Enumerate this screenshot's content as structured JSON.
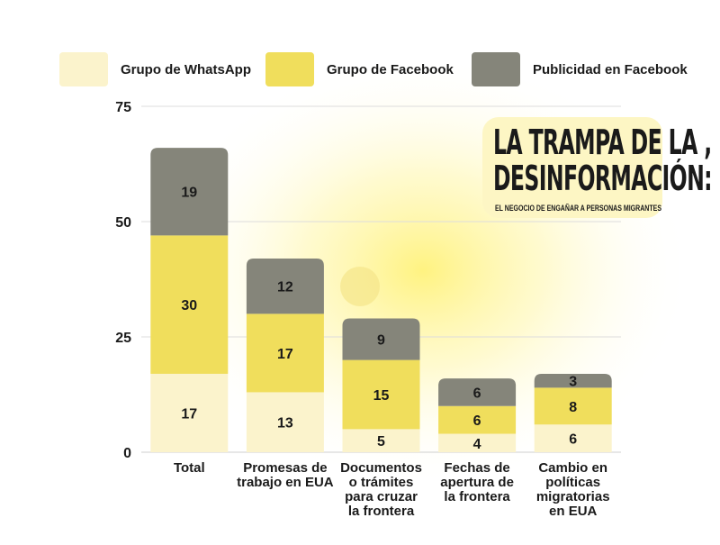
{
  "legend": [
    {
      "label": "Grupo de WhatsApp",
      "color": "#fbf3cc"
    },
    {
      "label": "Grupo de Facebook",
      "color": "#f0de5c"
    },
    {
      "label": "Publicidad en Facebook",
      "color": "#85857a"
    }
  ],
  "badge": {
    "line1": "LA TRAMPA DE LA ,",
    "line2": "DESINFORMACIÓN:",
    "subtitle": "EL NEGOCIO DE ENGAÑAR A PERSONAS MIGRANTES"
  },
  "chart_data": {
    "type": "bar",
    "stacked": true,
    "categories": [
      [
        "Total"
      ],
      [
        "Promesas de",
        "trabajo en EUA"
      ],
      [
        "Documentos",
        "o trámites",
        "para cruzar",
        "la frontera"
      ],
      [
        "Fechas de",
        "apertura de",
        "la frontera"
      ],
      [
        "Cambio en",
        "políticas",
        "migratorias",
        "en EUA"
      ]
    ],
    "series": [
      {
        "name": "Grupo de WhatsApp",
        "values": [
          17,
          13,
          5,
          4,
          6
        ],
        "color": "#fbf3cc"
      },
      {
        "name": "Grupo de Facebook",
        "values": [
          30,
          17,
          15,
          6,
          8
        ],
        "color": "#f0de5c"
      },
      {
        "name": "Publicidad en Facebook",
        "values": [
          19,
          12,
          9,
          6,
          3
        ],
        "color": "#85857a"
      }
    ],
    "yticks": [
      0,
      25,
      50,
      75
    ],
    "ylim": [
      0,
      75
    ],
    "grid": true,
    "legend_position": "top"
  }
}
